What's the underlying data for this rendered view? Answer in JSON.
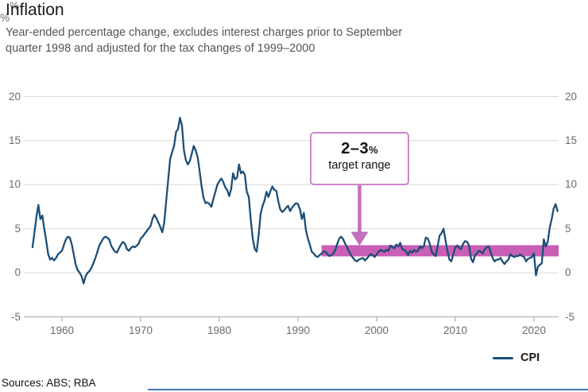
{
  "page": {
    "title": "Inflation",
    "subtitle_line1": "Year-ended percentage change, excludes interest charges prior to September",
    "subtitle_line2": "quarter 1998 and adjusted for the tax changes of 1999–2000",
    "sources": "Sources: ABS; RBA"
  },
  "legend": {
    "label": "CPI"
  },
  "annotation": {
    "range": "2–3",
    "percent": "%",
    "caption": "target range"
  },
  "colors": {
    "line": "#1b4e78",
    "band": "#c85fb5",
    "arrow": "#c26fbe",
    "box_border": "#cd85cb",
    "grid": "#dadada",
    "axis": "#b3b3b3",
    "tick": "#999999",
    "bottom_rule": "#4577b8"
  },
  "chart_data": {
    "type": "line",
    "title": "Inflation",
    "unit": "%",
    "ylim": [
      -5,
      20
    ],
    "y_ticks": [
      20,
      15,
      10,
      5,
      0,
      -5
    ],
    "x_ticks": [
      1960,
      1970,
      1980,
      1990,
      2000,
      2010,
      2020
    ],
    "x_range": [
      1955.0,
      2023.2
    ],
    "grid": true,
    "legend_position": "bottom-right",
    "target_band": {
      "from": 2,
      "to": 3,
      "start_year": 1993,
      "label": "2–3% target range"
    },
    "series": [
      {
        "name": "CPI",
        "points": [
          [
            1956.25,
            2.9
          ],
          [
            1956.5,
            4.6
          ],
          [
            1956.75,
            6.3
          ],
          [
            1957,
            7.7
          ],
          [
            1957.25,
            6.1
          ],
          [
            1957.5,
            6.5
          ],
          [
            1957.75,
            5.0
          ],
          [
            1958,
            3.6
          ],
          [
            1958.25,
            2.1
          ],
          [
            1958.5,
            1.5
          ],
          [
            1958.75,
            1.7
          ],
          [
            1959,
            1.4
          ],
          [
            1959.25,
            1.7
          ],
          [
            1959.5,
            2.1
          ],
          [
            1959.75,
            2.3
          ],
          [
            1960,
            2.5
          ],
          [
            1960.25,
            3.2
          ],
          [
            1960.5,
            3.8
          ],
          [
            1960.75,
            4.1
          ],
          [
            1961,
            4.0
          ],
          [
            1961.25,
            3.2
          ],
          [
            1961.5,
            2.1
          ],
          [
            1961.75,
            0.9
          ],
          [
            1962,
            0.3
          ],
          [
            1962.25,
            0.0
          ],
          [
            1962.5,
            -0.4
          ],
          [
            1962.75,
            -1.2
          ],
          [
            1963,
            -0.4
          ],
          [
            1963.25,
            0.0
          ],
          [
            1963.5,
            0.2
          ],
          [
            1963.75,
            0.6
          ],
          [
            1964,
            1.1
          ],
          [
            1964.25,
            1.7
          ],
          [
            1964.5,
            2.4
          ],
          [
            1964.75,
            3.1
          ],
          [
            1965,
            3.5
          ],
          [
            1965.25,
            3.9
          ],
          [
            1965.5,
            4.1
          ],
          [
            1965.75,
            4.0
          ],
          [
            1966,
            3.8
          ],
          [
            1966.25,
            3.1
          ],
          [
            1966.5,
            2.7
          ],
          [
            1966.75,
            2.4
          ],
          [
            1967,
            2.3
          ],
          [
            1967.25,
            2.8
          ],
          [
            1967.5,
            3.2
          ],
          [
            1967.75,
            3.5
          ],
          [
            1968,
            3.3
          ],
          [
            1968.25,
            2.7
          ],
          [
            1968.5,
            2.5
          ],
          [
            1968.75,
            2.8
          ],
          [
            1969,
            3.0
          ],
          [
            1969.25,
            2.9
          ],
          [
            1969.5,
            3.1
          ],
          [
            1969.75,
            3.3
          ],
          [
            1970,
            3.9
          ],
          [
            1970.25,
            4.1
          ],
          [
            1970.5,
            4.4
          ],
          [
            1970.75,
            4.7
          ],
          [
            1971,
            5.0
          ],
          [
            1971.25,
            5.3
          ],
          [
            1971.5,
            6.1
          ],
          [
            1971.75,
            6.6
          ],
          [
            1972,
            6.2
          ],
          [
            1972.25,
            5.7
          ],
          [
            1972.5,
            5.2
          ],
          [
            1972.75,
            4.6
          ],
          [
            1973,
            5.7
          ],
          [
            1973.25,
            8.2
          ],
          [
            1973.5,
            10.6
          ],
          [
            1973.75,
            12.9
          ],
          [
            1974,
            13.7
          ],
          [
            1974.25,
            14.4
          ],
          [
            1974.5,
            16.0
          ],
          [
            1974.75,
            16.3
          ],
          [
            1975,
            17.6
          ],
          [
            1975.25,
            16.7
          ],
          [
            1975.5,
            13.9
          ],
          [
            1975.75,
            12.8
          ],
          [
            1976,
            12.3
          ],
          [
            1976.25,
            12.7
          ],
          [
            1976.5,
            13.5
          ],
          [
            1976.75,
            14.4
          ],
          [
            1977,
            13.9
          ],
          [
            1977.25,
            13.1
          ],
          [
            1977.5,
            11.5
          ],
          [
            1977.75,
            9.8
          ],
          [
            1978,
            8.5
          ],
          [
            1978.25,
            7.9
          ],
          [
            1978.5,
            8.0
          ],
          [
            1978.75,
            7.8
          ],
          [
            1979,
            7.5
          ],
          [
            1979.25,
            8.4
          ],
          [
            1979.5,
            9.2
          ],
          [
            1979.75,
            10.0
          ],
          [
            1980,
            10.4
          ],
          [
            1980.25,
            10.7
          ],
          [
            1980.5,
            10.3
          ],
          [
            1980.75,
            9.7
          ],
          [
            1981,
            9.4
          ],
          [
            1981.25,
            8.7
          ],
          [
            1981.5,
            9.5
          ],
          [
            1981.75,
            11.3
          ],
          [
            1982,
            10.6
          ],
          [
            1982.25,
            10.8
          ],
          [
            1982.5,
            12.3
          ],
          [
            1982.75,
            11.3
          ],
          [
            1983,
            11.5
          ],
          [
            1983.25,
            11.1
          ],
          [
            1983.5,
            9.2
          ],
          [
            1983.75,
            8.6
          ],
          [
            1984,
            6.0
          ],
          [
            1984.25,
            3.9
          ],
          [
            1984.5,
            2.7
          ],
          [
            1984.75,
            2.4
          ],
          [
            1985,
            4.3
          ],
          [
            1985.25,
            6.7
          ],
          [
            1985.5,
            7.6
          ],
          [
            1985.75,
            8.2
          ],
          [
            1986,
            9.2
          ],
          [
            1986.25,
            8.6
          ],
          [
            1986.5,
            9.3
          ],
          [
            1986.75,
            9.8
          ],
          [
            1987,
            9.4
          ],
          [
            1987.25,
            9.3
          ],
          [
            1987.5,
            8.1
          ],
          [
            1987.75,
            7.2
          ],
          [
            1988,
            6.9
          ],
          [
            1988.25,
            7.1
          ],
          [
            1988.5,
            7.4
          ],
          [
            1988.75,
            7.6
          ],
          [
            1989,
            7.0
          ],
          [
            1989.25,
            7.4
          ],
          [
            1989.5,
            7.7
          ],
          [
            1989.75,
            7.9
          ],
          [
            1990,
            7.8
          ],
          [
            1990.25,
            7.2
          ],
          [
            1990.5,
            6.1
          ],
          [
            1990.75,
            6.8
          ],
          [
            1991,
            4.9
          ],
          [
            1991.25,
            3.9
          ],
          [
            1991.5,
            3.2
          ],
          [
            1991.75,
            2.4
          ],
          [
            1992,
            2.2
          ],
          [
            1992.25,
            1.9
          ],
          [
            1992.5,
            1.8
          ],
          [
            1992.75,
            2.0
          ],
          [
            1993,
            2.2
          ],
          [
            1993.25,
            2.4
          ],
          [
            1993.5,
            2.4
          ],
          [
            1993.75,
            2.1
          ],
          [
            1994,
            1.9
          ],
          [
            1994.25,
            2.0
          ],
          [
            1994.5,
            2.2
          ],
          [
            1994.75,
            2.6
          ],
          [
            1995,
            3.3
          ],
          [
            1995.25,
            3.9
          ],
          [
            1995.5,
            4.1
          ],
          [
            1995.75,
            3.8
          ],
          [
            1996,
            3.3
          ],
          [
            1996.25,
            2.9
          ],
          [
            1996.5,
            2.4
          ],
          [
            1996.75,
            2.0
          ],
          [
            1997,
            1.7
          ],
          [
            1997.25,
            1.4
          ],
          [
            1997.5,
            1.3
          ],
          [
            1997.75,
            1.5
          ],
          [
            1998,
            1.6
          ],
          [
            1998.25,
            1.7
          ],
          [
            1998.5,
            1.4
          ],
          [
            1998.75,
            1.6
          ],
          [
            1999,
            1.9
          ],
          [
            1999.25,
            2.1
          ],
          [
            1999.5,
            2.0
          ],
          [
            1999.75,
            1.8
          ],
          [
            2000,
            2.1
          ],
          [
            2000.25,
            2.4
          ],
          [
            2000.5,
            2.6
          ],
          [
            2000.75,
            2.5
          ],
          [
            2001,
            2.4
          ],
          [
            2001.25,
            2.6
          ],
          [
            2001.5,
            2.5
          ],
          [
            2001.75,
            3.1
          ],
          [
            2002,
            2.9
          ],
          [
            2002.25,
            2.8
          ],
          [
            2002.5,
            3.2
          ],
          [
            2002.75,
            3.0
          ],
          [
            2003,
            3.4
          ],
          [
            2003.25,
            2.7
          ],
          [
            2003.5,
            2.6
          ],
          [
            2003.75,
            2.4
          ],
          [
            2004,
            2.0
          ],
          [
            2004.25,
            2.5
          ],
          [
            2004.5,
            2.3
          ],
          [
            2004.75,
            2.6
          ],
          [
            2005,
            2.4
          ],
          [
            2005.25,
            2.5
          ],
          [
            2005.5,
            3.0
          ],
          [
            2005.75,
            2.8
          ],
          [
            2006,
            3.0
          ],
          [
            2006.25,
            4.0
          ],
          [
            2006.5,
            3.9
          ],
          [
            2006.75,
            3.3
          ],
          [
            2007,
            2.4
          ],
          [
            2007.25,
            2.1
          ],
          [
            2007.5,
            1.9
          ],
          [
            2007.75,
            3.0
          ],
          [
            2008,
            4.2
          ],
          [
            2008.25,
            4.5
          ],
          [
            2008.5,
            5.0
          ],
          [
            2008.75,
            3.7
          ],
          [
            2009,
            2.5
          ],
          [
            2009.25,
            1.5
          ],
          [
            2009.5,
            1.3
          ],
          [
            2009.75,
            2.1
          ],
          [
            2010,
            2.9
          ],
          [
            2010.25,
            3.1
          ],
          [
            2010.5,
            2.8
          ],
          [
            2010.75,
            2.7
          ],
          [
            2011,
            3.3
          ],
          [
            2011.25,
            3.6
          ],
          [
            2011.5,
            3.5
          ],
          [
            2011.75,
            3.1
          ],
          [
            2012,
            1.6
          ],
          [
            2012.25,
            1.2
          ],
          [
            2012.5,
            2.0
          ],
          [
            2012.75,
            2.2
          ],
          [
            2013,
            2.5
          ],
          [
            2013.25,
            2.4
          ],
          [
            2013.5,
            2.2
          ],
          [
            2013.75,
            2.7
          ],
          [
            2014,
            2.9
          ],
          [
            2014.25,
            3.0
          ],
          [
            2014.5,
            2.3
          ],
          [
            2014.75,
            1.7
          ],
          [
            2015,
            1.3
          ],
          [
            2015.25,
            1.5
          ],
          [
            2015.5,
            1.5
          ],
          [
            2015.75,
            1.7
          ],
          [
            2016,
            1.3
          ],
          [
            2016.25,
            1.0
          ],
          [
            2016.5,
            1.3
          ],
          [
            2016.75,
            1.5
          ],
          [
            2017,
            2.1
          ],
          [
            2017.25,
            1.9
          ],
          [
            2017.5,
            1.8
          ],
          [
            2017.75,
            1.9
          ],
          [
            2018,
            1.9
          ],
          [
            2018.25,
            2.1
          ],
          [
            2018.5,
            1.9
          ],
          [
            2018.75,
            1.8
          ],
          [
            2019,
            1.3
          ],
          [
            2019.25,
            1.6
          ],
          [
            2019.5,
            1.7
          ],
          [
            2019.75,
            1.8
          ],
          [
            2020,
            2.2
          ],
          [
            2020.25,
            -0.3
          ],
          [
            2020.5,
            0.7
          ],
          [
            2020.75,
            0.9
          ],
          [
            2021,
            1.1
          ],
          [
            2021.25,
            3.8
          ],
          [
            2021.5,
            3.0
          ],
          [
            2021.75,
            3.5
          ],
          [
            2022,
            5.1
          ],
          [
            2022.25,
            6.1
          ],
          [
            2022.5,
            7.3
          ],
          [
            2022.75,
            7.8
          ],
          [
            2023,
            7.0
          ]
        ]
      }
    ]
  }
}
